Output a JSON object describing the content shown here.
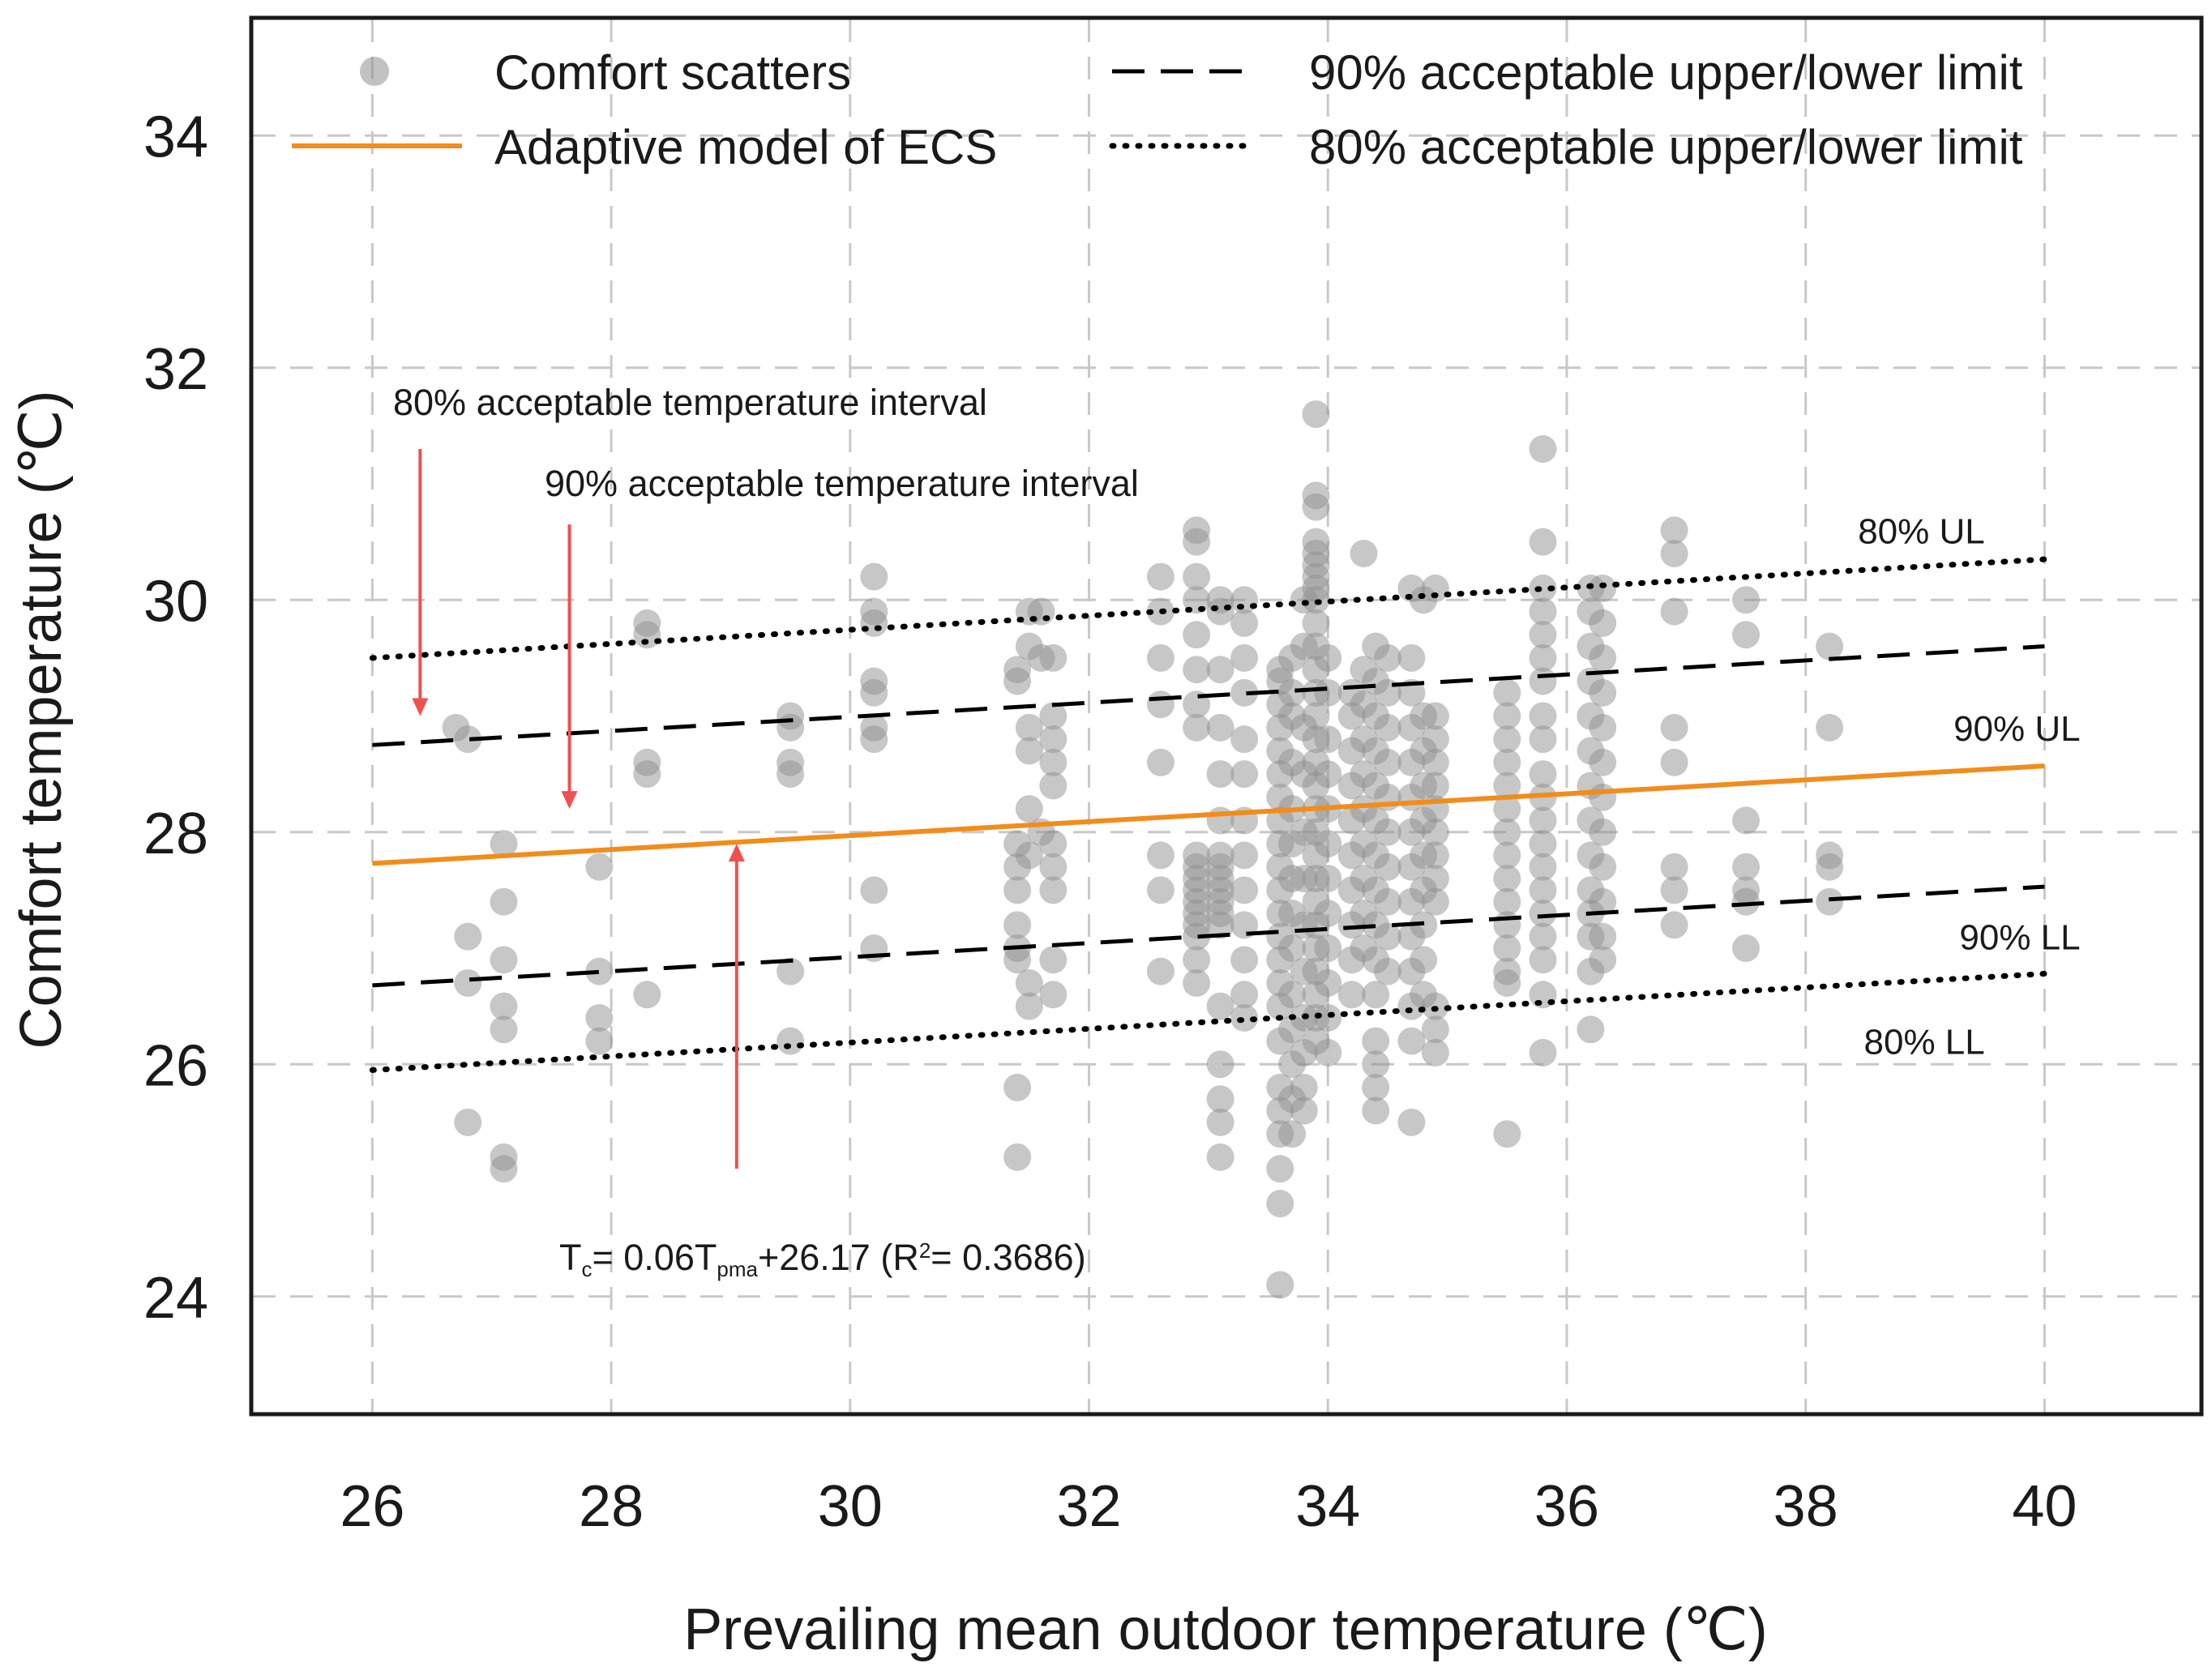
{
  "chart_data": {
    "type": "scatter",
    "xlabel": "Prevailing mean outdoor temperature (℃)",
    "ylabel": "Comfort temperature (℃)",
    "xlim": [
      25,
      41.3
    ],
    "ylim": [
      23,
      35
    ],
    "xticks": [
      "26",
      "28",
      "30",
      "32",
      "34",
      "36",
      "38",
      "40"
    ],
    "yticks": [
      "24",
      "26",
      "28",
      "30",
      "32",
      "34"
    ],
    "grid": true,
    "legend_position": "top",
    "legend": {
      "scatter": "Comfort scatters",
      "model": "Adaptive model of ECS",
      "limits90": "90% acceptable upper/lower limit",
      "limits80": "80% acceptable upper/lower limit"
    },
    "colors": {
      "points": "#8f8f8f",
      "model": "#f28c1c",
      "limits": "#000000",
      "arrows": "#f05050",
      "grid": "#c8c8c8"
    },
    "lines": {
      "x_range": [
        26,
        40
      ],
      "model": [
        27.73,
        28.57
      ],
      "ul90": [
        28.75,
        29.6
      ],
      "ll90": [
        26.68,
        27.53
      ],
      "ul80": [
        29.5,
        30.35
      ],
      "ll80": [
        25.95,
        26.78
      ]
    },
    "band_labels": {
      "ul80": "80% UL",
      "ul90": "90% UL",
      "ll90": "90% LL",
      "ll80": "80% LL"
    },
    "annotations": {
      "interval80": "80% acceptable temperature interval",
      "interval90": "90% acceptable temperature interval",
      "equation": {
        "t": "T",
        "c": "c",
        "eq": "= 0.06T",
        "pma": "pma",
        "rest": "+26.17 (R",
        "sq": "2",
        "end": "= 0.3686)"
      }
    },
    "points": [
      [
        26.7,
        28.9
      ],
      [
        26.8,
        28.8
      ],
      [
        26.8,
        27.1
      ],
      [
        26.8,
        26.7
      ],
      [
        26.8,
        25.5
      ],
      [
        27.1,
        27.9
      ],
      [
        27.1,
        27.4
      ],
      [
        27.1,
        26.9
      ],
      [
        27.1,
        26.5
      ],
      [
        27.1,
        26.3
      ],
      [
        27.1,
        25.2
      ],
      [
        27.1,
        25.1
      ],
      [
        27.9,
        27.7
      ],
      [
        27.9,
        26.8
      ],
      [
        27.9,
        26.4
      ],
      [
        27.9,
        26.2
      ],
      [
        28.3,
        29.8
      ],
      [
        28.3,
        29.7
      ],
      [
        28.3,
        28.6
      ],
      [
        28.3,
        28.5
      ],
      [
        28.3,
        26.6
      ],
      [
        29.5,
        29.0
      ],
      [
        29.5,
        28.9
      ],
      [
        29.5,
        28.6
      ],
      [
        29.5,
        28.5
      ],
      [
        29.5,
        26.8
      ],
      [
        29.5,
        26.2
      ],
      [
        30.2,
        30.2
      ],
      [
        30.2,
        29.9
      ],
      [
        30.2,
        29.8
      ],
      [
        30.2,
        29.3
      ],
      [
        30.2,
        29.2
      ],
      [
        30.2,
        28.9
      ],
      [
        30.2,
        28.8
      ],
      [
        30.2,
        27.5
      ],
      [
        30.2,
        27.0
      ],
      [
        31.4,
        29.4
      ],
      [
        31.4,
        29.3
      ],
      [
        31.4,
        27.9
      ],
      [
        31.4,
        27.7
      ],
      [
        31.4,
        27.5
      ],
      [
        31.4,
        27.2
      ],
      [
        31.4,
        27.0
      ],
      [
        31.4,
        26.9
      ],
      [
        31.4,
        25.8
      ],
      [
        31.4,
        25.2
      ],
      [
        31.5,
        29.9
      ],
      [
        31.5,
        29.6
      ],
      [
        31.5,
        28.9
      ],
      [
        31.5,
        28.7
      ],
      [
        31.5,
        28.2
      ],
      [
        31.5,
        27.8
      ],
      [
        31.5,
        26.7
      ],
      [
        31.5,
        26.5
      ],
      [
        31.6,
        29.9
      ],
      [
        31.6,
        29.5
      ],
      [
        31.6,
        28.0
      ],
      [
        31.7,
        29.5
      ],
      [
        31.7,
        29.0
      ],
      [
        31.7,
        28.8
      ],
      [
        31.7,
        28.6
      ],
      [
        31.7,
        28.4
      ],
      [
        31.7,
        27.9
      ],
      [
        31.7,
        27.7
      ],
      [
        31.7,
        27.5
      ],
      [
        31.7,
        26.9
      ],
      [
        31.7,
        26.6
      ],
      [
        32.6,
        30.2
      ],
      [
        32.6,
        29.9
      ],
      [
        32.6,
        29.5
      ],
      [
        32.6,
        29.1
      ],
      [
        32.6,
        28.6
      ],
      [
        32.6,
        27.8
      ],
      [
        32.6,
        27.5
      ],
      [
        32.6,
        26.8
      ],
      [
        32.9,
        30.6
      ],
      [
        32.9,
        30.5
      ],
      [
        32.9,
        30.2
      ],
      [
        32.9,
        30.0
      ],
      [
        32.9,
        29.7
      ],
      [
        32.9,
        29.4
      ],
      [
        32.9,
        29.1
      ],
      [
        32.9,
        28.9
      ],
      [
        32.9,
        27.8
      ],
      [
        32.9,
        27.7
      ],
      [
        32.9,
        27.6
      ],
      [
        32.9,
        27.5
      ],
      [
        32.9,
        27.4
      ],
      [
        32.9,
        27.3
      ],
      [
        32.9,
        27.2
      ],
      [
        32.9,
        27.1
      ],
      [
        32.9,
        26.9
      ],
      [
        32.9,
        26.7
      ],
      [
        33.1,
        30.0
      ],
      [
        33.1,
        29.9
      ],
      [
        33.1,
        29.4
      ],
      [
        33.1,
        28.9
      ],
      [
        33.1,
        28.5
      ],
      [
        33.1,
        28.1
      ],
      [
        33.1,
        27.8
      ],
      [
        33.1,
        27.7
      ],
      [
        33.1,
        27.6
      ],
      [
        33.1,
        27.5
      ],
      [
        33.1,
        27.4
      ],
      [
        33.1,
        27.3
      ],
      [
        33.1,
        27.2
      ],
      [
        33.1,
        26.5
      ],
      [
        33.1,
        26.0
      ],
      [
        33.1,
        25.7
      ],
      [
        33.1,
        25.5
      ],
      [
        33.1,
        25.2
      ],
      [
        33.3,
        30.0
      ],
      [
        33.3,
        29.8
      ],
      [
        33.3,
        29.5
      ],
      [
        33.3,
        29.2
      ],
      [
        33.3,
        28.8
      ],
      [
        33.3,
        28.5
      ],
      [
        33.3,
        28.1
      ],
      [
        33.3,
        27.8
      ],
      [
        33.3,
        27.5
      ],
      [
        33.3,
        27.2
      ],
      [
        33.3,
        26.9
      ],
      [
        33.3,
        26.6
      ],
      [
        33.3,
        26.4
      ],
      [
        33.6,
        29.4
      ],
      [
        33.6,
        29.3
      ],
      [
        33.6,
        29.1
      ],
      [
        33.6,
        28.9
      ],
      [
        33.6,
        28.7
      ],
      [
        33.6,
        28.5
      ],
      [
        33.6,
        28.3
      ],
      [
        33.6,
        28.1
      ],
      [
        33.6,
        27.9
      ],
      [
        33.6,
        27.7
      ],
      [
        33.6,
        27.5
      ],
      [
        33.6,
        27.3
      ],
      [
        33.6,
        27.1
      ],
      [
        33.6,
        26.9
      ],
      [
        33.6,
        26.7
      ],
      [
        33.6,
        26.5
      ],
      [
        33.6,
        26.2
      ],
      [
        33.6,
        25.8
      ],
      [
        33.6,
        25.6
      ],
      [
        33.6,
        25.4
      ],
      [
        33.6,
        25.1
      ],
      [
        33.6,
        24.8
      ],
      [
        33.6,
        24.1
      ],
      [
        33.7,
        29.5
      ],
      [
        33.7,
        29.2
      ],
      [
        33.7,
        29.0
      ],
      [
        33.7,
        28.6
      ],
      [
        33.7,
        28.2
      ],
      [
        33.7,
        27.9
      ],
      [
        33.7,
        27.6
      ],
      [
        33.7,
        27.3
      ],
      [
        33.7,
        27.0
      ],
      [
        33.7,
        26.6
      ],
      [
        33.7,
        26.3
      ],
      [
        33.7,
        26.0
      ],
      [
        33.7,
        25.7
      ],
      [
        33.7,
        25.4
      ],
      [
        33.8,
        30.0
      ],
      [
        33.8,
        29.6
      ],
      [
        33.8,
        28.9
      ],
      [
        33.8,
        28.5
      ],
      [
        33.8,
        28.0
      ],
      [
        33.8,
        27.6
      ],
      [
        33.8,
        27.2
      ],
      [
        33.8,
        26.8
      ],
      [
        33.8,
        26.4
      ],
      [
        33.8,
        26.1
      ],
      [
        33.8,
        25.8
      ],
      [
        33.8,
        25.6
      ],
      [
        33.9,
        31.6
      ],
      [
        33.9,
        30.9
      ],
      [
        33.9,
        30.8
      ],
      [
        33.9,
        30.5
      ],
      [
        33.9,
        30.4
      ],
      [
        33.9,
        30.3
      ],
      [
        33.9,
        30.2
      ],
      [
        33.9,
        30.1
      ],
      [
        33.9,
        30.0
      ],
      [
        33.9,
        29.8
      ],
      [
        33.9,
        29.6
      ],
      [
        33.9,
        29.4
      ],
      [
        33.9,
        29.2
      ],
      [
        33.9,
        29.0
      ],
      [
        33.9,
        28.8
      ],
      [
        33.9,
        28.6
      ],
      [
        33.9,
        28.4
      ],
      [
        33.9,
        28.2
      ],
      [
        33.9,
        28.0
      ],
      [
        33.9,
        27.8
      ],
      [
        33.9,
        27.6
      ],
      [
        33.9,
        27.4
      ],
      [
        33.9,
        27.2
      ],
      [
        33.9,
        27.0
      ],
      [
        33.9,
        26.8
      ],
      [
        33.9,
        26.6
      ],
      [
        33.9,
        26.4
      ],
      [
        33.9,
        26.2
      ],
      [
        34.0,
        29.5
      ],
      [
        34.0,
        29.2
      ],
      [
        34.0,
        28.8
      ],
      [
        34.0,
        28.5
      ],
      [
        34.0,
        28.2
      ],
      [
        34.0,
        27.9
      ],
      [
        34.0,
        27.6
      ],
      [
        34.0,
        27.3
      ],
      [
        34.0,
        27.0
      ],
      [
        34.0,
        26.7
      ],
      [
        34.0,
        26.4
      ],
      [
        34.0,
        26.1
      ],
      [
        34.2,
        29.2
      ],
      [
        34.2,
        29.0
      ],
      [
        34.2,
        28.7
      ],
      [
        34.2,
        28.4
      ],
      [
        34.2,
        28.1
      ],
      [
        34.2,
        27.8
      ],
      [
        34.2,
        27.5
      ],
      [
        34.2,
        27.2
      ],
      [
        34.2,
        26.9
      ],
      [
        34.2,
        26.6
      ],
      [
        34.3,
        30.4
      ],
      [
        34.3,
        29.4
      ],
      [
        34.3,
        29.1
      ],
      [
        34.3,
        28.8
      ],
      [
        34.3,
        28.5
      ],
      [
        34.3,
        28.2
      ],
      [
        34.3,
        27.9
      ],
      [
        34.3,
        27.6
      ],
      [
        34.3,
        27.3
      ],
      [
        34.3,
        27.0
      ],
      [
        34.4,
        29.6
      ],
      [
        34.4,
        29.3
      ],
      [
        34.4,
        29.0
      ],
      [
        34.4,
        28.7
      ],
      [
        34.4,
        28.4
      ],
      [
        34.4,
        28.1
      ],
      [
        34.4,
        27.8
      ],
      [
        34.4,
        27.5
      ],
      [
        34.4,
        27.2
      ],
      [
        34.4,
        26.9
      ],
      [
        34.4,
        26.6
      ],
      [
        34.4,
        26.2
      ],
      [
        34.4,
        26.0
      ],
      [
        34.4,
        25.8
      ],
      [
        34.4,
        25.6
      ],
      [
        34.5,
        29.5
      ],
      [
        34.5,
        29.2
      ],
      [
        34.5,
        28.9
      ],
      [
        34.5,
        28.6
      ],
      [
        34.5,
        28.3
      ],
      [
        34.5,
        28.0
      ],
      [
        34.5,
        27.7
      ],
      [
        34.5,
        27.4
      ],
      [
        34.5,
        27.1
      ],
      [
        34.5,
        26.8
      ],
      [
        34.7,
        30.1
      ],
      [
        34.7,
        29.5
      ],
      [
        34.7,
        29.2
      ],
      [
        34.7,
        28.9
      ],
      [
        34.7,
        28.6
      ],
      [
        34.7,
        28.3
      ],
      [
        34.7,
        28.0
      ],
      [
        34.7,
        27.7
      ],
      [
        34.7,
        27.4
      ],
      [
        34.7,
        27.1
      ],
      [
        34.7,
        26.8
      ],
      [
        34.7,
        26.5
      ],
      [
        34.7,
        26.2
      ],
      [
        34.7,
        25.5
      ],
      [
        34.8,
        30.0
      ],
      [
        34.8,
        29.0
      ],
      [
        34.8,
        28.7
      ],
      [
        34.8,
        28.4
      ],
      [
        34.8,
        28.1
      ],
      [
        34.8,
        27.8
      ],
      [
        34.8,
        27.5
      ],
      [
        34.8,
        27.2
      ],
      [
        34.8,
        26.9
      ],
      [
        34.8,
        26.6
      ],
      [
        34.9,
        30.1
      ],
      [
        34.9,
        29.0
      ],
      [
        34.9,
        28.8
      ],
      [
        34.9,
        28.6
      ],
      [
        34.9,
        28.4
      ],
      [
        34.9,
        28.2
      ],
      [
        34.9,
        28.0
      ],
      [
        34.9,
        27.8
      ],
      [
        34.9,
        27.6
      ],
      [
        34.9,
        27.4
      ],
      [
        34.9,
        26.5
      ],
      [
        34.9,
        26.3
      ],
      [
        34.9,
        26.1
      ],
      [
        35.5,
        29.2
      ],
      [
        35.5,
        29.0
      ],
      [
        35.5,
        28.8
      ],
      [
        35.5,
        28.6
      ],
      [
        35.5,
        28.4
      ],
      [
        35.5,
        28.2
      ],
      [
        35.5,
        28.0
      ],
      [
        35.5,
        27.8
      ],
      [
        35.5,
        27.6
      ],
      [
        35.5,
        27.4
      ],
      [
        35.5,
        27.2
      ],
      [
        35.5,
        27.0
      ],
      [
        35.5,
        26.8
      ],
      [
        35.5,
        26.7
      ],
      [
        35.5,
        25.4
      ],
      [
        35.8,
        31.3
      ],
      [
        35.8,
        30.5
      ],
      [
        35.8,
        30.1
      ],
      [
        35.8,
        29.9
      ],
      [
        35.8,
        29.7
      ],
      [
        35.8,
        29.5
      ],
      [
        35.8,
        29.3
      ],
      [
        35.8,
        29.0
      ],
      [
        35.8,
        28.8
      ],
      [
        35.8,
        28.5
      ],
      [
        35.8,
        28.3
      ],
      [
        35.8,
        28.1
      ],
      [
        35.8,
        27.9
      ],
      [
        35.8,
        27.7
      ],
      [
        35.8,
        27.5
      ],
      [
        35.8,
        27.3
      ],
      [
        35.8,
        27.1
      ],
      [
        35.8,
        26.9
      ],
      [
        35.8,
        26.6
      ],
      [
        35.8,
        26.1
      ],
      [
        36.2,
        30.1
      ],
      [
        36.2,
        29.9
      ],
      [
        36.2,
        29.6
      ],
      [
        36.2,
        29.3
      ],
      [
        36.2,
        29.0
      ],
      [
        36.2,
        28.7
      ],
      [
        36.2,
        28.4
      ],
      [
        36.2,
        28.1
      ],
      [
        36.2,
        27.8
      ],
      [
        36.2,
        27.5
      ],
      [
        36.2,
        27.3
      ],
      [
        36.2,
        27.1
      ],
      [
        36.2,
        26.8
      ],
      [
        36.2,
        26.3
      ],
      [
        36.3,
        30.1
      ],
      [
        36.3,
        29.8
      ],
      [
        36.3,
        29.5
      ],
      [
        36.3,
        29.2
      ],
      [
        36.3,
        28.9
      ],
      [
        36.3,
        28.6
      ],
      [
        36.3,
        28.3
      ],
      [
        36.3,
        28.0
      ],
      [
        36.3,
        27.7
      ],
      [
        36.3,
        27.4
      ],
      [
        36.3,
        27.1
      ],
      [
        36.3,
        26.9
      ],
      [
        36.9,
        30.6
      ],
      [
        36.9,
        30.4
      ],
      [
        36.9,
        29.9
      ],
      [
        36.9,
        28.9
      ],
      [
        36.9,
        28.6
      ],
      [
        36.9,
        27.7
      ],
      [
        36.9,
        27.5
      ],
      [
        36.9,
        27.2
      ],
      [
        37.5,
        30.0
      ],
      [
        37.5,
        29.7
      ],
      [
        37.5,
        28.1
      ],
      [
        37.5,
        27.7
      ],
      [
        37.5,
        27.5
      ],
      [
        37.5,
        27.4
      ],
      [
        37.5,
        27.0
      ],
      [
        38.2,
        29.6
      ],
      [
        38.2,
        28.9
      ],
      [
        38.2,
        27.8
      ],
      [
        38.2,
        27.7
      ],
      [
        38.2,
        27.4
      ]
    ]
  }
}
